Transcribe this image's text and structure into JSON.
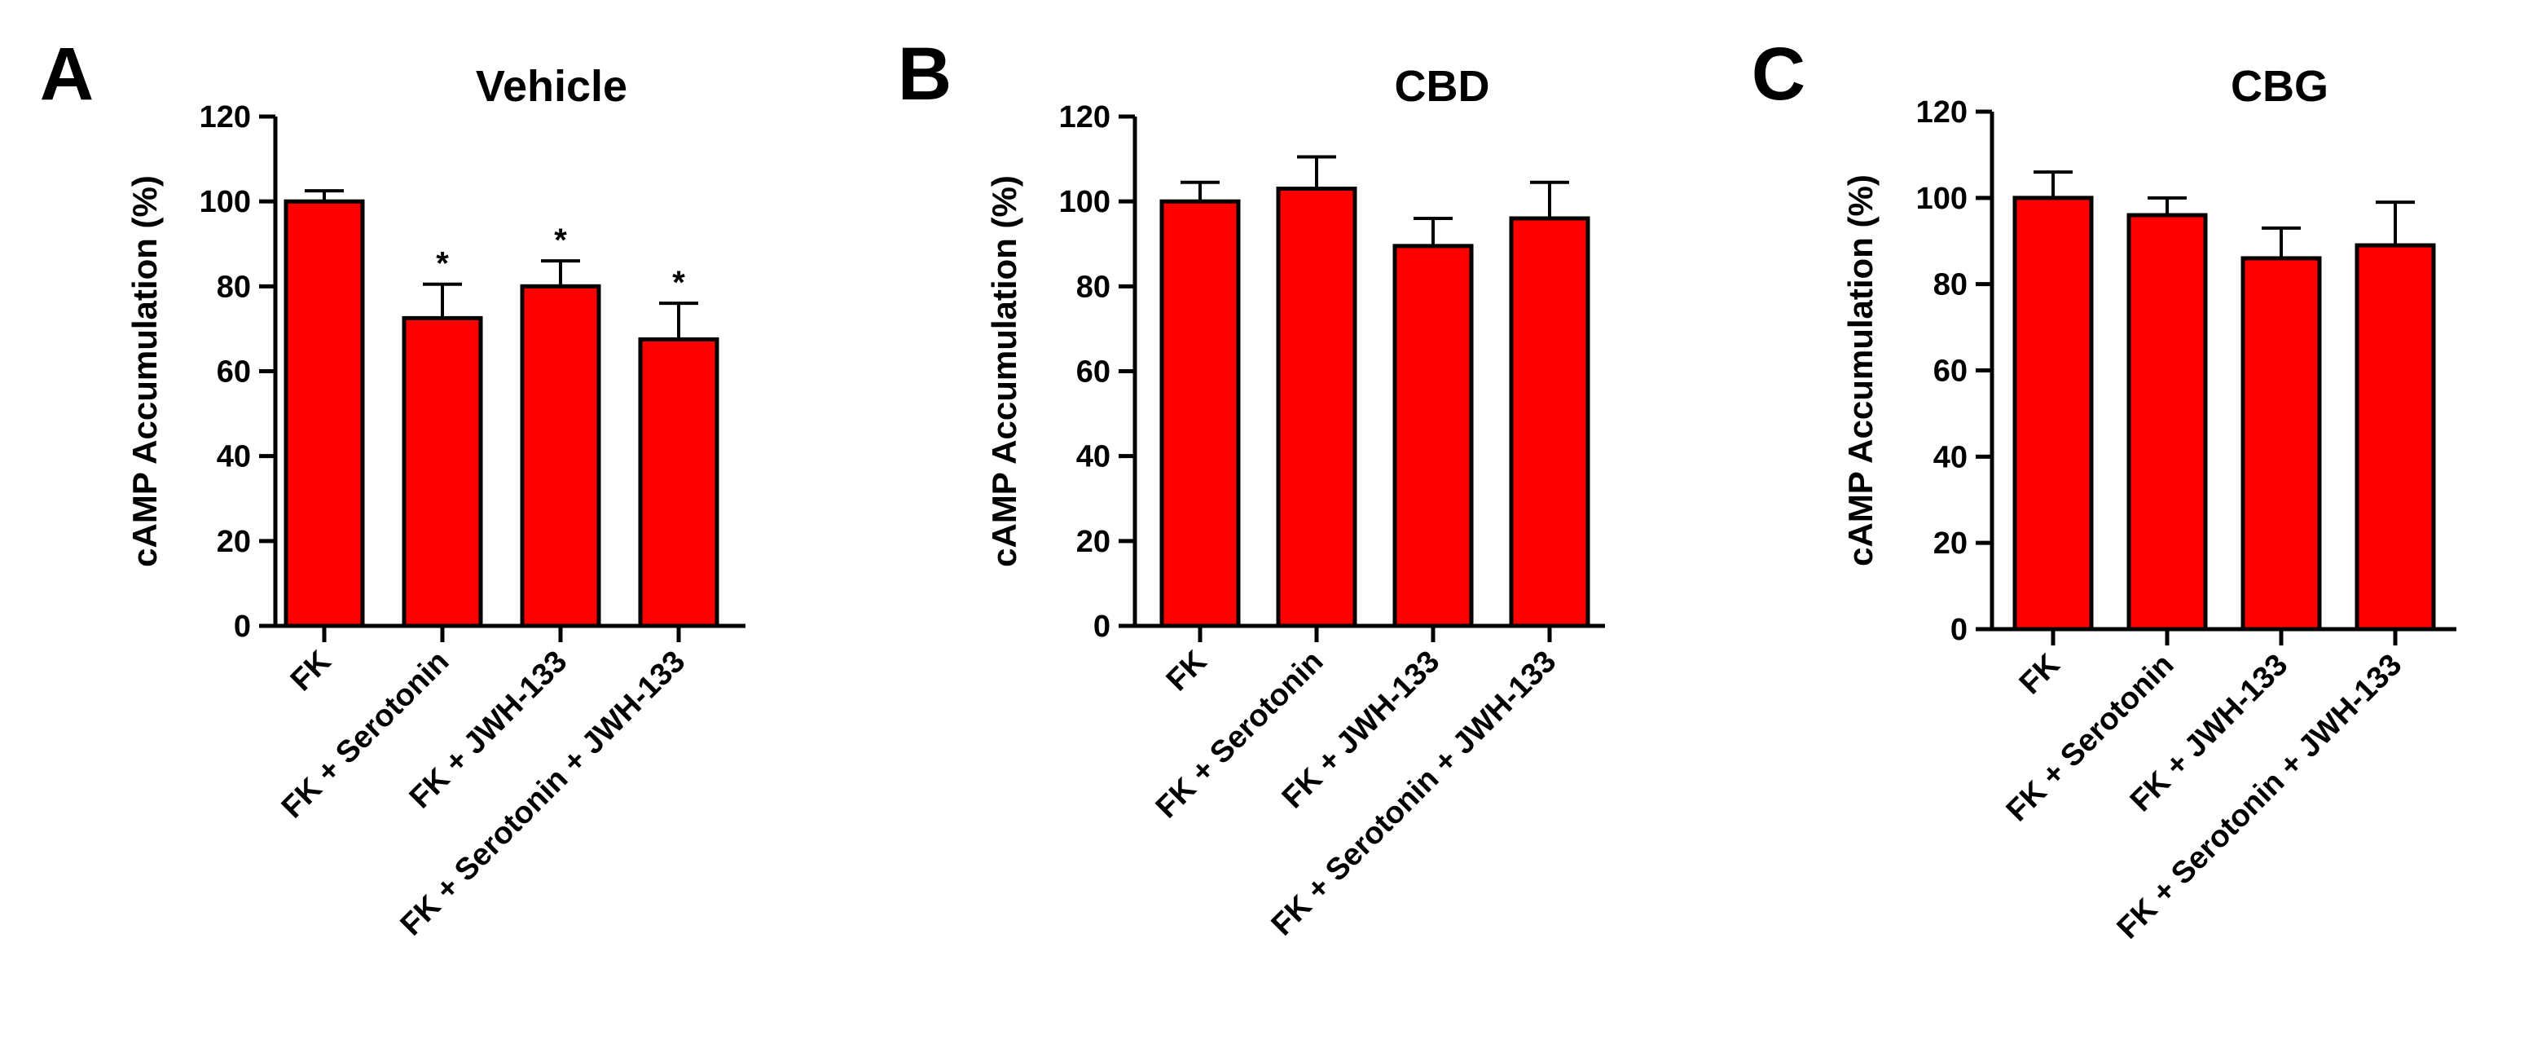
{
  "figure": {
    "background": "#ffffff"
  },
  "colors": {
    "bar_fill": "#ff0000",
    "bar_stroke": "#000000",
    "axis": "#000000"
  },
  "chart_data": [
    {
      "panel": "A",
      "type": "bar",
      "title": "Vehicle",
      "xlabel": "",
      "ylabel": "cAMP Accumulation (%)",
      "ylim": [
        0,
        120
      ],
      "yticks": [
        0,
        20,
        40,
        60,
        80,
        100,
        120
      ],
      "categories": [
        "FK",
        "FK + Serotonin",
        "FK + JWH-133",
        "FK + Serotonin + JWH-133"
      ],
      "values": [
        100,
        72.5,
        80,
        67.5
      ],
      "errors": [
        2.5,
        8,
        6,
        8.5
      ],
      "annotations": [
        "",
        "*",
        "*",
        "*"
      ]
    },
    {
      "panel": "B",
      "type": "bar",
      "title": "CBD",
      "xlabel": "",
      "ylabel": "cAMP Accumulation (%)",
      "ylim": [
        0,
        120
      ],
      "yticks": [
        0,
        20,
        40,
        60,
        80,
        100,
        120
      ],
      "categories": [
        "FK",
        "FK + Serotonin",
        "FK + JWH-133",
        "FK + Serotonin + JWH-133"
      ],
      "values": [
        100,
        103,
        89.5,
        96
      ],
      "errors": [
        4.5,
        7.5,
        6.5,
        8.5
      ],
      "annotations": [
        "",
        "",
        "",
        ""
      ]
    },
    {
      "panel": "C",
      "type": "bar",
      "title": "CBG",
      "xlabel": "",
      "ylabel": "cAMP Accumulation (%)",
      "ylim": [
        0,
        120
      ],
      "yticks": [
        0,
        20,
        40,
        60,
        80,
        100,
        120
      ],
      "categories": [
        "FK",
        "FK + Serotonin",
        "FK + JWH-133",
        "FK + Serotonin + JWH-133"
      ],
      "values": [
        100,
        96,
        86,
        89
      ],
      "errors": [
        6,
        4,
        7,
        10
      ],
      "annotations": [
        "",
        "",
        "",
        ""
      ]
    }
  ]
}
